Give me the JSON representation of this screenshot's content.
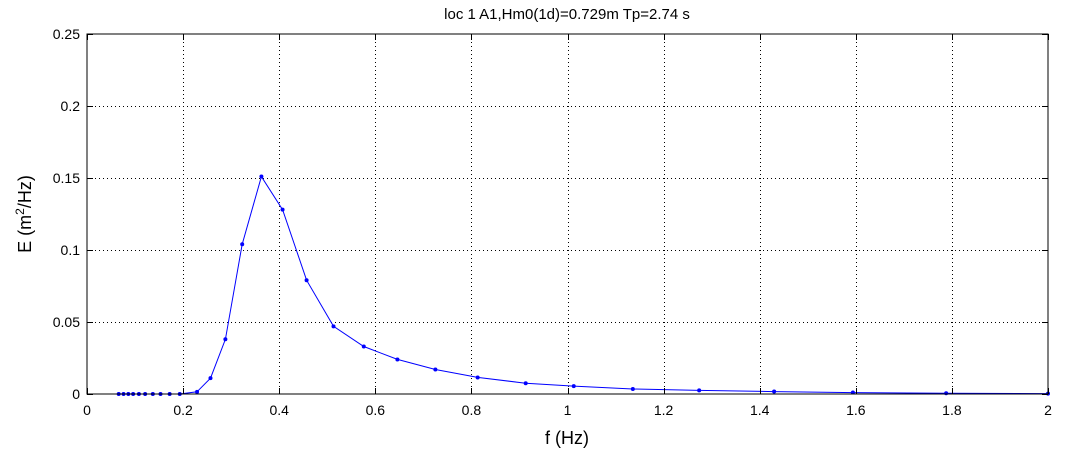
{
  "chart_data": {
    "type": "line",
    "title": "loc 1 A1,Hm0(1d)=0.729m Tp=2.74 s",
    "xlabel": "f (Hz)",
    "ylabel": {
      "prefix": "E (m",
      "superscript": "2",
      "suffix": "/Hz)"
    },
    "xlim": [
      0,
      2
    ],
    "ylim": [
      0,
      0.25
    ],
    "xticks": [
      0,
      0.2,
      0.4,
      0.6,
      0.8,
      1,
      1.2,
      1.4,
      1.6,
      1.8,
      2
    ],
    "xtick_labels": [
      "0",
      "0.2",
      "0.4",
      "0.6",
      "0.8",
      "1",
      "1.2",
      "1.4",
      "1.6",
      "1.8",
      "2"
    ],
    "yticks": [
      0,
      0.05,
      0.1,
      0.15,
      0.2,
      0.25
    ],
    "ytick_labels": [
      "0",
      "0.05",
      "0.1",
      "0.15",
      "0.2",
      "0.25"
    ],
    "grid": true,
    "line_color": "#0000ff",
    "series": [
      {
        "x": [
          0.066,
          0.076,
          0.086,
          0.096,
          0.108,
          0.121,
          0.137,
          0.153,
          0.172,
          0.193,
          0.229,
          0.257,
          0.288,
          0.323,
          0.363,
          0.407,
          0.457,
          0.513,
          0.576,
          0.646,
          0.725,
          0.813,
          0.913,
          1.013,
          1.136,
          1.274,
          1.43,
          1.594,
          1.788,
          2.0
        ],
        "y": [
          0.0,
          0.0,
          0.0,
          0.0,
          0.0,
          0.0,
          0.0,
          0.0,
          0.0,
          0.0,
          0.0015,
          0.011,
          0.038,
          0.104,
          0.151,
          0.128,
          0.079,
          0.047,
          0.033,
          0.024,
          0.017,
          0.0115,
          0.0075,
          0.0055,
          0.0035,
          0.0025,
          0.0017,
          0.001,
          0.0005,
          0.0003
        ]
      }
    ]
  }
}
